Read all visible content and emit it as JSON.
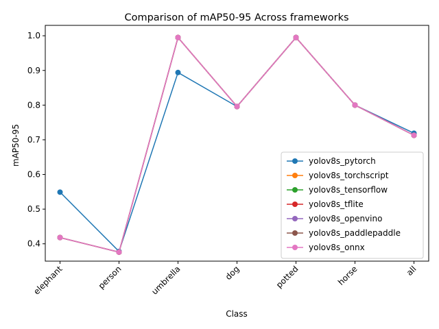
{
  "chart_data": {
    "type": "line",
    "title": "Comparison of mAP50-95 Across frameworks",
    "xlabel": "Class",
    "ylabel": "mAP50-95",
    "categories": [
      "elephant",
      "person",
      "umbrella",
      "dog",
      "potted",
      "horse",
      "all"
    ],
    "ylim": [
      0.35,
      1.03
    ],
    "yticks": [
      "0.4",
      "0.5",
      "0.6",
      "0.7",
      "0.8",
      "0.9",
      "1.0"
    ],
    "grid": false,
    "legend_position": "lower-right",
    "series": [
      {
        "name": "yolov8s_pytorch",
        "color": "#1f77b4",
        "values": [
          0.549,
          0.378,
          0.894,
          0.796,
          0.995,
          0.8,
          0.719
        ]
      },
      {
        "name": "yolov8s_torchscript",
        "color": "#ff7f0e",
        "values": [
          0.418,
          0.376,
          0.995,
          0.796,
          0.995,
          0.8,
          0.713
        ]
      },
      {
        "name": "yolov8s_tensorflow",
        "color": "#2ca02c",
        "values": [
          0.418,
          0.376,
          0.995,
          0.796,
          0.995,
          0.8,
          0.713
        ]
      },
      {
        "name": "yolov8s_tflite",
        "color": "#d62728",
        "values": [
          0.418,
          0.376,
          0.995,
          0.796,
          0.995,
          0.8,
          0.713
        ]
      },
      {
        "name": "yolov8s_openvino",
        "color": "#9467bd",
        "values": [
          0.418,
          0.376,
          0.995,
          0.796,
          0.995,
          0.8,
          0.713
        ]
      },
      {
        "name": "yolov8s_paddlepaddle",
        "color": "#8c564b",
        "values": [
          0.418,
          0.376,
          0.995,
          0.796,
          0.995,
          0.8,
          0.713
        ]
      },
      {
        "name": "yolov8s_onnx",
        "color": "#e377c2",
        "values": [
          0.418,
          0.376,
          0.995,
          0.796,
          0.995,
          0.8,
          0.713
        ]
      }
    ]
  }
}
